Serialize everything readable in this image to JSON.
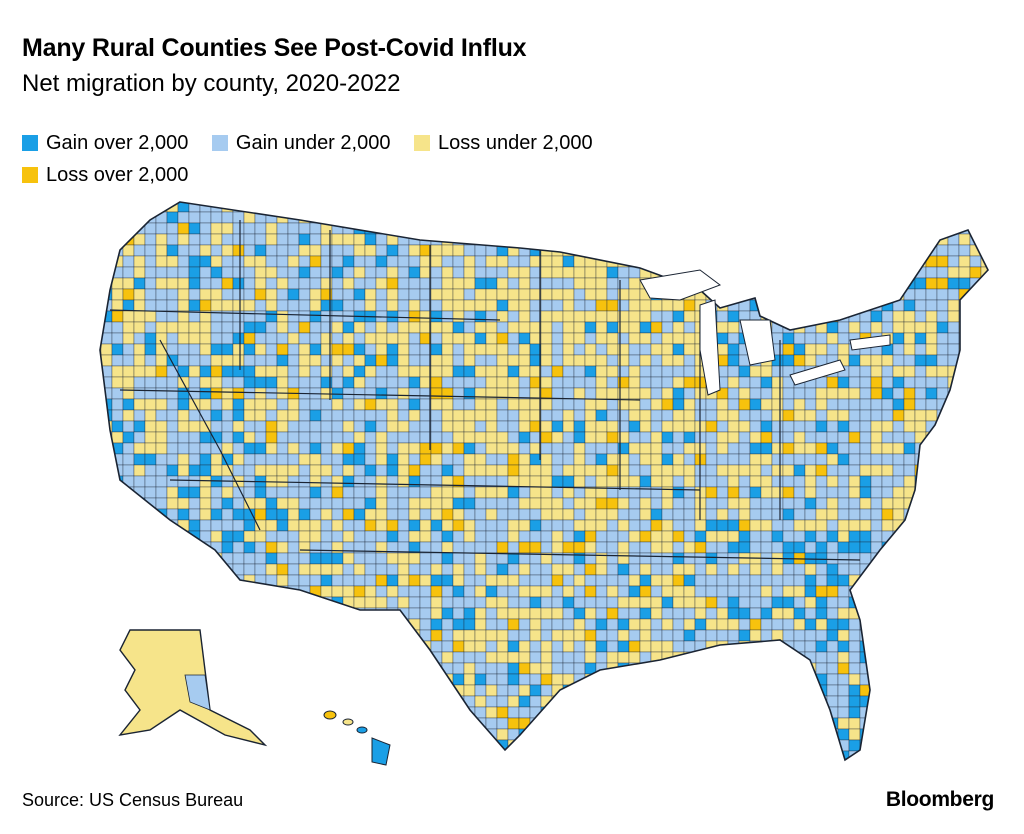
{
  "title": "Many Rural Counties See Post-Covid Influx",
  "subtitle": "Net migration by county, 2020-2022",
  "legend": [
    {
      "label": "Gain over 2,000",
      "color": "#1a9fe6"
    },
    {
      "label": "Gain under 2,000",
      "color": "#a6cbf0"
    },
    {
      "label": "Loss under 2,000",
      "color": "#f6e48a"
    },
    {
      "label": "Loss over 2,000",
      "color": "#f7c20d"
    }
  ],
  "map": {
    "region": "United States (contiguous, Alaska, Hawaii)",
    "unit": "county",
    "border_color": "#1a2433"
  },
  "source": "Source: US Census Bureau",
  "brand": "Bloomberg"
}
